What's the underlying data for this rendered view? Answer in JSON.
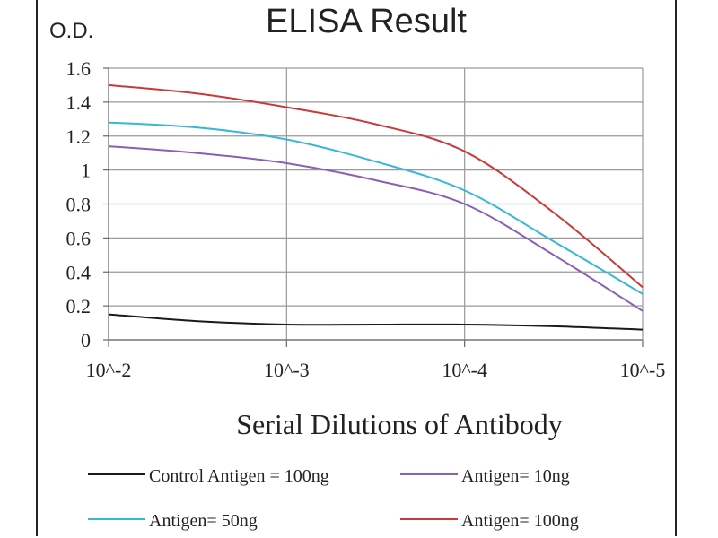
{
  "chart_data": {
    "type": "line",
    "title": "ELISA Result",
    "ylabel": "O.D.",
    "xlabel": "Serial Dilutions  of Antibody",
    "categories": [
      "10^-2",
      "10^-3",
      "10^-4",
      "10^-5"
    ],
    "y_ticks": [
      "0",
      "0.2",
      "0.4",
      "0.6",
      "0.8",
      "1",
      "1.2",
      "1.4",
      "1.6"
    ],
    "ylim": [
      0,
      1.6
    ],
    "grid": true,
    "legend_placement": "bottom",
    "series": [
      {
        "name": "Control Antigen = 100ng",
        "color": "#1a1a1a",
        "x": [
          0,
          0.5,
          1,
          1.5,
          2,
          2.5,
          3
        ],
        "values": [
          0.15,
          0.11,
          0.09,
          0.09,
          0.09,
          0.08,
          0.06
        ]
      },
      {
        "name": "Antigen= 10ng",
        "color": "#8a5fb5",
        "x": [
          0,
          0.5,
          1,
          1.5,
          2,
          2.5,
          3
        ],
        "values": [
          1.14,
          1.1,
          1.04,
          0.94,
          0.8,
          0.5,
          0.17
        ]
      },
      {
        "name": "Antigen= 50ng",
        "color": "#35b8d8",
        "x": [
          0,
          0.5,
          1,
          1.5,
          2,
          2.5,
          3
        ],
        "values": [
          1.28,
          1.25,
          1.18,
          1.05,
          0.88,
          0.58,
          0.27
        ]
      },
      {
        "name": "Antigen= 100ng",
        "color": "#c83a3a",
        "x": [
          0,
          0.5,
          1,
          1.5,
          2,
          2.5,
          3
        ],
        "values": [
          1.5,
          1.45,
          1.37,
          1.27,
          1.11,
          0.75,
          0.31
        ]
      }
    ]
  }
}
